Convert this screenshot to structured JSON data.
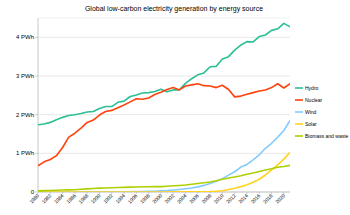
{
  "chart_data": {
    "type": "line",
    "title": "Global low-carbon electricity generation by energy source",
    "categories": [
      "1980",
      null,
      "1982",
      null,
      "1984",
      null,
      "1986",
      null,
      "1988",
      null,
      "1990",
      null,
      "1992",
      null,
      "1994",
      null,
      "1996",
      null,
      "1998",
      null,
      "2000",
      null,
      "2002",
      null,
      "2004",
      null,
      "2006",
      null,
      "2008",
      null,
      "2010",
      null,
      "2012",
      null,
      "2014",
      null,
      "2016",
      null,
      "2018",
      null,
      "2020",
      null
    ],
    "series": [
      {
        "name": "Hydro",
        "color": "#2bbf96",
        "values": [
          1.74,
          1.76,
          1.8,
          1.87,
          1.93,
          1.98,
          2.0,
          2.03,
          2.07,
          2.08,
          2.16,
          2.21,
          2.21,
          2.32,
          2.35,
          2.47,
          2.51,
          2.56,
          2.57,
          2.6,
          2.66,
          2.59,
          2.64,
          2.64,
          2.81,
          2.93,
          3.03,
          3.08,
          3.24,
          3.25,
          3.44,
          3.5,
          3.67,
          3.8,
          3.89,
          3.88,
          4.02,
          4.06,
          4.18,
          4.22,
          4.36,
          4.27
        ]
      },
      {
        "name": "Nuclear",
        "color": "#ff420e",
        "values": [
          0.68,
          0.78,
          0.84,
          0.94,
          1.15,
          1.42,
          1.52,
          1.65,
          1.8,
          1.86,
          1.99,
          2.08,
          2.11,
          2.18,
          2.25,
          2.33,
          2.41,
          2.4,
          2.43,
          2.52,
          2.58,
          2.65,
          2.7,
          2.64,
          2.74,
          2.77,
          2.8,
          2.75,
          2.74,
          2.7,
          2.76,
          2.65,
          2.46,
          2.48,
          2.53,
          2.57,
          2.61,
          2.64,
          2.7,
          2.8,
          2.69,
          2.8
        ]
      },
      {
        "name": "Wind",
        "color": "#83caff",
        "values": [
          0.0,
          0.0,
          0.0,
          0.0,
          0.001,
          0.001,
          0.001,
          0.002,
          0.003,
          0.003,
          0.004,
          0.004,
          0.005,
          0.006,
          0.007,
          0.008,
          0.01,
          0.012,
          0.016,
          0.021,
          0.031,
          0.038,
          0.052,
          0.063,
          0.085,
          0.104,
          0.133,
          0.171,
          0.22,
          0.277,
          0.346,
          0.437,
          0.524,
          0.645,
          0.712,
          0.832,
          0.962,
          1.13,
          1.26,
          1.42,
          1.59,
          1.85
        ]
      },
      {
        "name": "Solar",
        "color": "#ffd320",
        "values": [
          0.0,
          0.0,
          0.0,
          0.0,
          0.0,
          0.0,
          0.0,
          0.0,
          0.0,
          0.0,
          0.0,
          0.0,
          0.0,
          0.0,
          0.0,
          0.0,
          0.0,
          0.0,
          0.001,
          0.001,
          0.001,
          0.001,
          0.002,
          0.002,
          0.003,
          0.004,
          0.006,
          0.008,
          0.012,
          0.02,
          0.032,
          0.063,
          0.099,
          0.139,
          0.19,
          0.25,
          0.33,
          0.44,
          0.57,
          0.7,
          0.85,
          1.03
        ]
      },
      {
        "name": "Biomass and waste",
        "color": "#aecf00",
        "values": [
          0.03,
          0.035,
          0.04,
          0.045,
          0.05,
          0.055,
          0.06,
          0.07,
          0.08,
          0.09,
          0.1,
          0.105,
          0.11,
          0.115,
          0.12,
          0.125,
          0.13,
          0.135,
          0.135,
          0.14,
          0.14,
          0.15,
          0.16,
          0.17,
          0.18,
          0.2,
          0.22,
          0.24,
          0.26,
          0.29,
          0.33,
          0.36,
          0.39,
          0.42,
          0.46,
          0.49,
          0.53,
          0.57,
          0.6,
          0.64,
          0.66,
          0.69
        ]
      }
    ],
    "ylim": [
      0,
      4.5
    ],
    "yticks": [
      0,
      {
        "value": 1,
        "label": "1 PWh"
      },
      {
        "value": 2,
        "label": "2 PWh"
      },
      {
        "value": 3,
        "label": "3 PWh"
      },
      {
        "value": 4,
        "label": "4 PWh"
      }
    ],
    "grid": true,
    "legend": "right"
  }
}
